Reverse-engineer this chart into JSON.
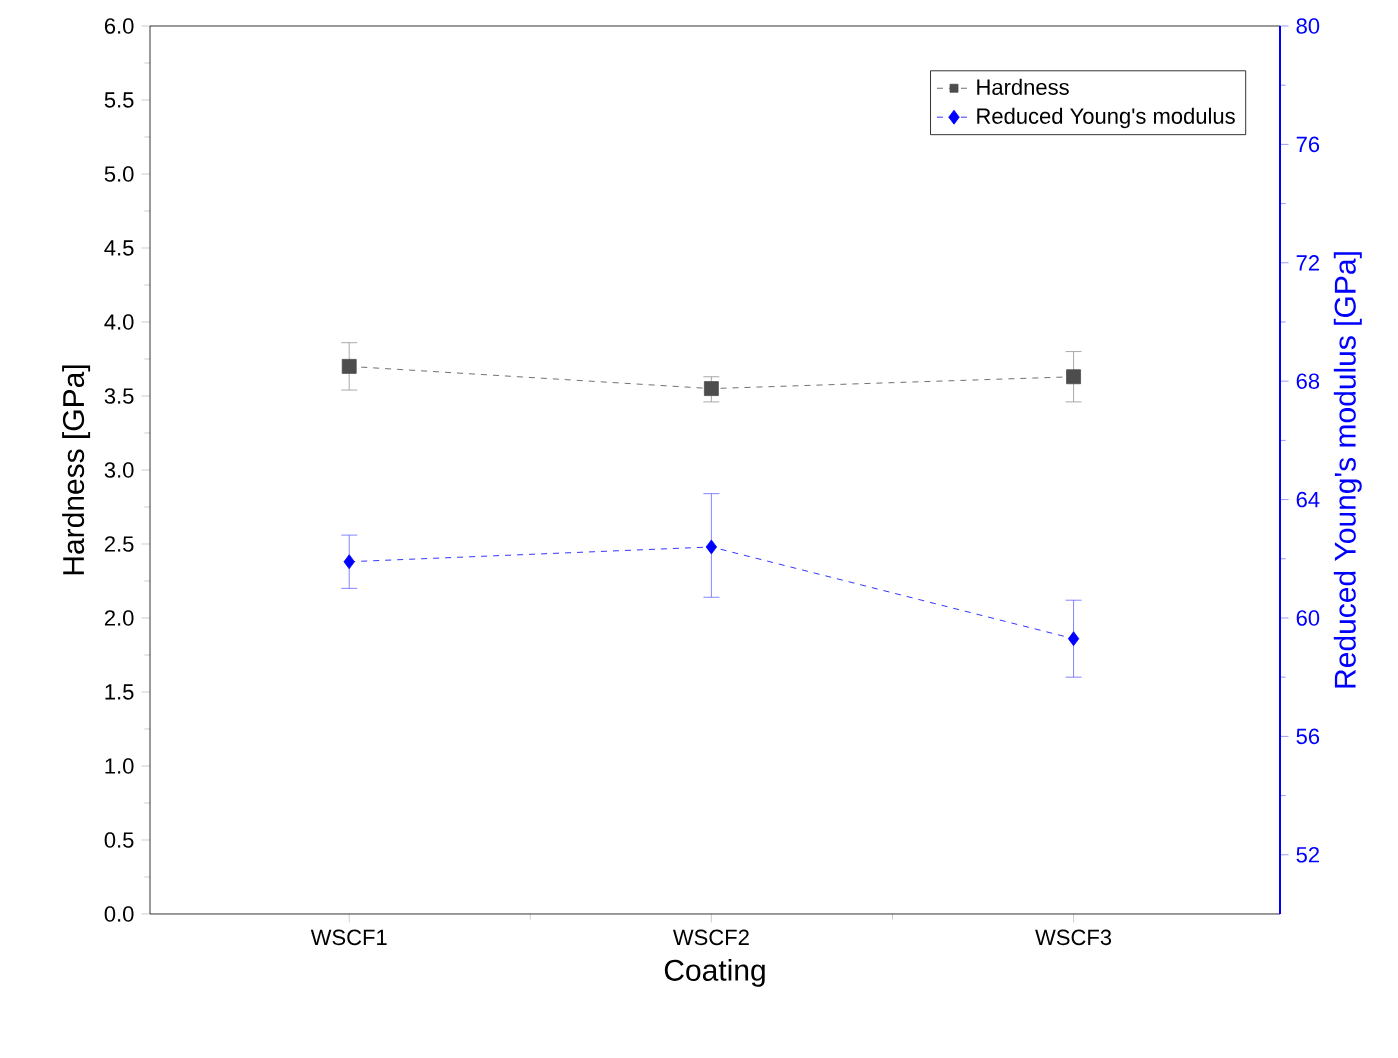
{
  "chart_data": {
    "type": "line",
    "xlabel": "Coating",
    "ylabel": "Hardness  [GPa]",
    "y2label": "Reduced Young's modulus [GPa]",
    "categories": [
      "WSCF1",
      "WSCF2",
      "WSCF3"
    ],
    "series": [
      {
        "name": "Hardness",
        "color": "#4d4d4d",
        "marker": "square",
        "line_style": "dashed",
        "values": [
          3.7,
          3.55,
          3.63
        ],
        "errors": [
          [
            3.54,
            3.86
          ],
          [
            3.46,
            3.63
          ],
          [
            3.46,
            3.8
          ]
        ]
      },
      {
        "name": "Reduced Young's modulus",
        "color": "#0000ff",
        "marker": "diamond",
        "line_style": "dashed",
        "axis": "y2",
        "values": [
          61.9,
          62.4,
          59.3
        ],
        "errors": [
          [
            61.0,
            62.8
          ],
          [
            60.7,
            64.2
          ],
          [
            58.0,
            60.6
          ]
        ]
      }
    ],
    "ylim": [
      0,
      6
    ],
    "yticks": [
      {
        "value": 0,
        "label": "0.0"
      },
      0.5,
      {
        "value": 1,
        "label": "1.0"
      },
      1.5,
      {
        "value": 2,
        "label": "2.0"
      },
      2.5,
      {
        "value": 3,
        "label": "3.0"
      },
      3.5,
      {
        "value": 4,
        "label": "4.0"
      },
      4.5,
      {
        "value": 5,
        "label": "5.0"
      },
      5.5,
      {
        "value": 6,
        "label": "6.0"
      }
    ],
    "y2lim": [
      50,
      80
    ],
    "y2ticks": [
      52,
      56,
      60,
      64,
      68,
      72,
      76,
      80
    ],
    "grid": false,
    "legend": "top right"
  }
}
